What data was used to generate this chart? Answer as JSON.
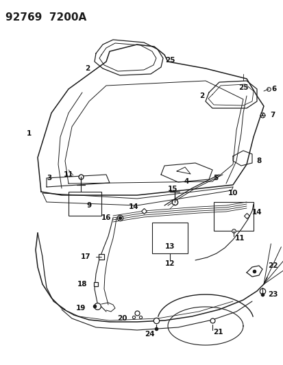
{
  "title": "92769  7200A",
  "bg_color": "#ffffff",
  "line_color": "#1a1a1a",
  "label_color": "#111111",
  "label_fontsize": 7.5,
  "figsize": [
    4.14,
    5.33
  ],
  "dpi": 100
}
